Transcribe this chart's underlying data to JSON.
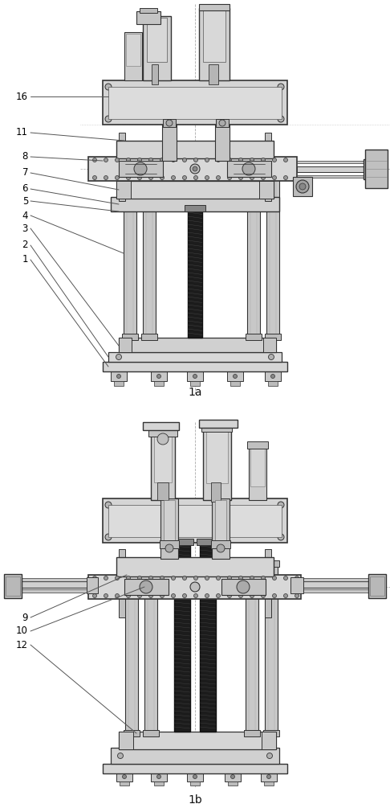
{
  "bg_color": "#ffffff",
  "fig_width": 4.86,
  "fig_height": 10.0,
  "dpi": 100,
  "line_color": "#333333",
  "text_color": "#000000",
  "annotation_fontsize": 8.5,
  "label_color": "#555555",
  "gray_light": "#e8e8e8",
  "gray_mid": "#cccccc",
  "gray_dark": "#aaaaaa",
  "black": "#111111",
  "annotations_top": [
    [
      "16",
      35,
      340,
      155,
      336
    ],
    [
      "11",
      35,
      310,
      140,
      308
    ],
    [
      "8",
      35,
      290,
      128,
      285
    ],
    [
      "7",
      35,
      272,
      135,
      268
    ],
    [
      "6",
      35,
      254,
      135,
      250
    ],
    [
      "5",
      35,
      236,
      145,
      232
    ],
    [
      "4",
      35,
      218,
      148,
      214
    ],
    [
      "3",
      35,
      200,
      148,
      195
    ],
    [
      "2",
      35,
      178,
      148,
      175
    ],
    [
      "1",
      35,
      158,
      148,
      152
    ]
  ],
  "annotations_bottom": [
    [
      "9",
      35,
      665,
      165,
      658
    ],
    [
      "10",
      35,
      680,
      175,
      676
    ],
    [
      "12",
      35,
      695,
      170,
      710
    ]
  ]
}
